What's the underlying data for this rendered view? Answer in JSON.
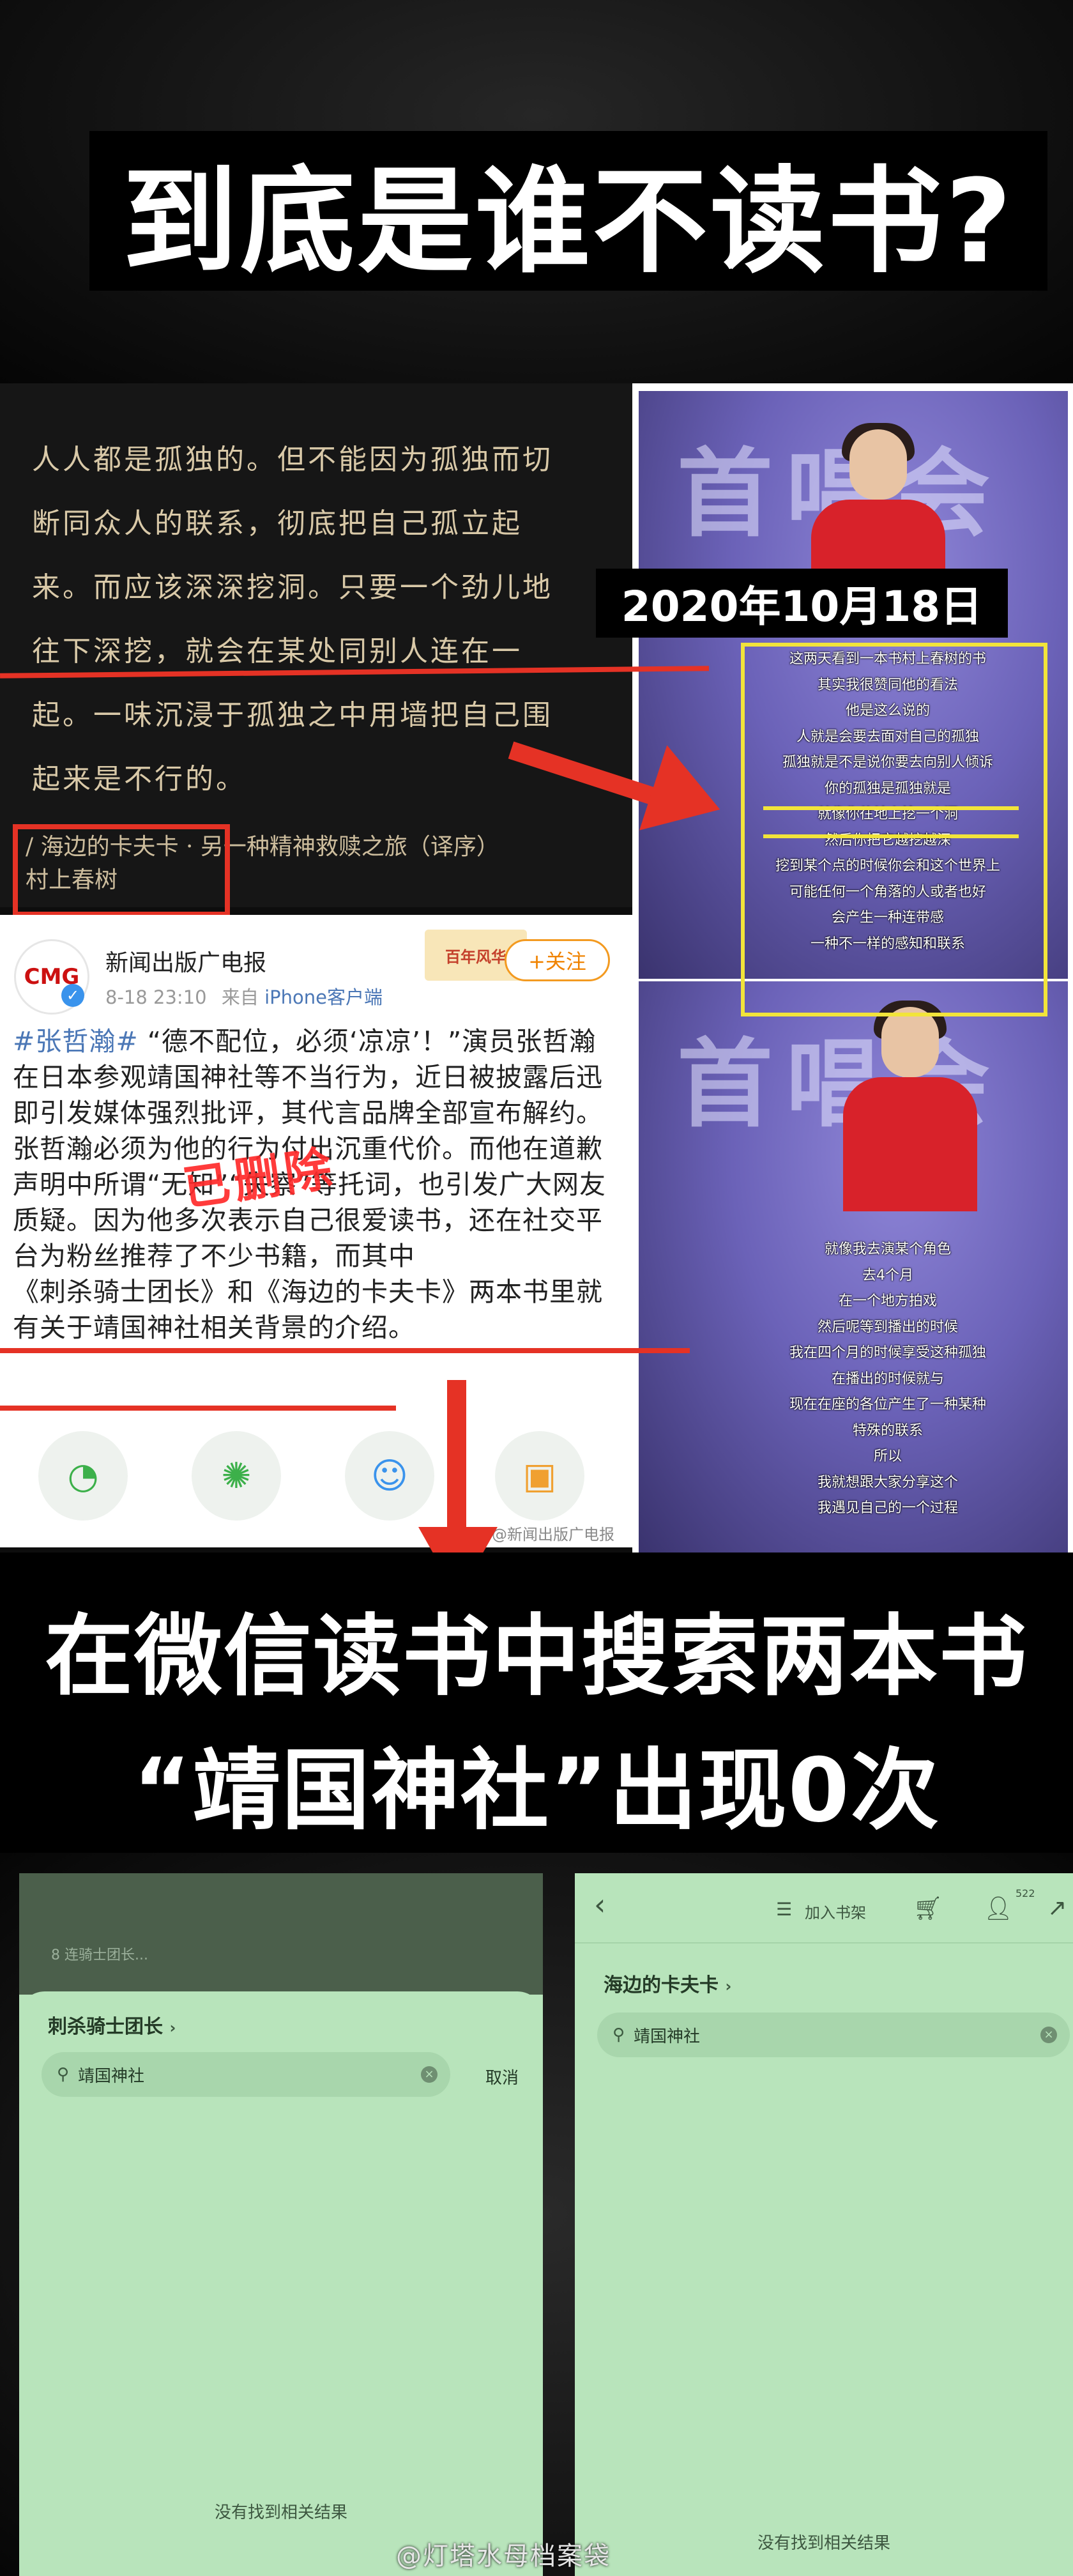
{
  "title": {
    "text": "到底是谁不读书?"
  },
  "quote": {
    "lines": [
      "人人都是孤独的。但不能因为孤独而切",
      "断同众人的联系，彻底把自己孤立起",
      "来。而应该深深挖洞。只要一个劲儿地",
      "往下深挖，就会在某处同别人连在一",
      "起。一味沉浸于孤独之中用墙把自己围",
      "起来是不行的。"
    ],
    "source_line1": "/ 海边的卡夫卡 · 另一种精神救赎之旅（译序）",
    "source_line2": "村上春树"
  },
  "concert": {
    "date_badge": "2020年10月18日",
    "stage_text": "首唱会",
    "lyrics_top": [
      "这两天看到一本书村上春树的书",
      "其实我很赞同他的看法",
      "他是这么说的",
      "人就是会要去面对自己的孤独",
      "孤独就是不是说你要去向别人倾诉",
      "你的孤独是孤独就是",
      "就像你往地上挖一个洞",
      "然后你把它越挖越深",
      "挖到某个点的时候你会和这个世界上",
      "可能任何一个角落的人或者也好",
      "会产生一种连带感",
      "一种不一样的感知和联系"
    ],
    "lyrics_bottom": [
      "就像我去演某个角色",
      "去4个月",
      "在一个地方拍戏",
      "然后呢等到播出的时候",
      "我在四个月的时候享受这种孤独",
      "在播出的时候就与",
      "现在在座的各位产生了一种某种",
      "特殊的联系",
      "所以",
      "我就想跟大家分享这个",
      "我遇见自己的一个过程"
    ]
  },
  "weibo": {
    "logo_text": "CMG",
    "account_name": "新闻出版广电报",
    "post_time": "8-18 23:10",
    "post_source_prefix": "来自",
    "post_source": "iPhone客户端",
    "anniv_banner": "百年风华",
    "follow_label": "+关注",
    "body_tag": "#张哲瀚#",
    "body_p1": " “德不配位，必须‘凉凉’！”演员张哲瀚在日本参观靖国神社等不当行为，近日被披露后迅即引发媒体强烈批评，其代言品牌全部宣布解约。",
    "body_p2a": "张哲瀚必须为他的行为付出沉重代价。而他在道歉声明中所谓“无知”“失察”等托词，也引发广大网友质疑。因为他多次表示自己很爱读书，还在社交平台为粉丝推荐了不少书籍，而其中",
    "body_book1": "《刺杀骑士团长》",
    "body_and": "和",
    "body_book2": "《海边的卡夫卡》",
    "body_p2b": "两本书里就有关于靖国神社相关背景的介绍。",
    "deleted_stamp": "已删除",
    "small_watermark": "@新闻出版广电报"
  },
  "caption": {
    "line1": "在微信读书中搜索两本书",
    "line2": "“靖国神社”出现0次"
  },
  "search_left": {
    "dim_text": "8 连骑士团长...",
    "book_title": "刺杀骑士团长",
    "query": "靖国神社",
    "cancel_label": "取消",
    "no_result": "没有找到相关结果"
  },
  "search_right": {
    "add_shelf": "加入书架",
    "badge_count": "522",
    "book_title": "海边的卡夫卡",
    "query": "靖国神社",
    "no_result": "没有找到相关结果"
  },
  "watermark": {
    "text": "@灯塔水母档案袋"
  }
}
